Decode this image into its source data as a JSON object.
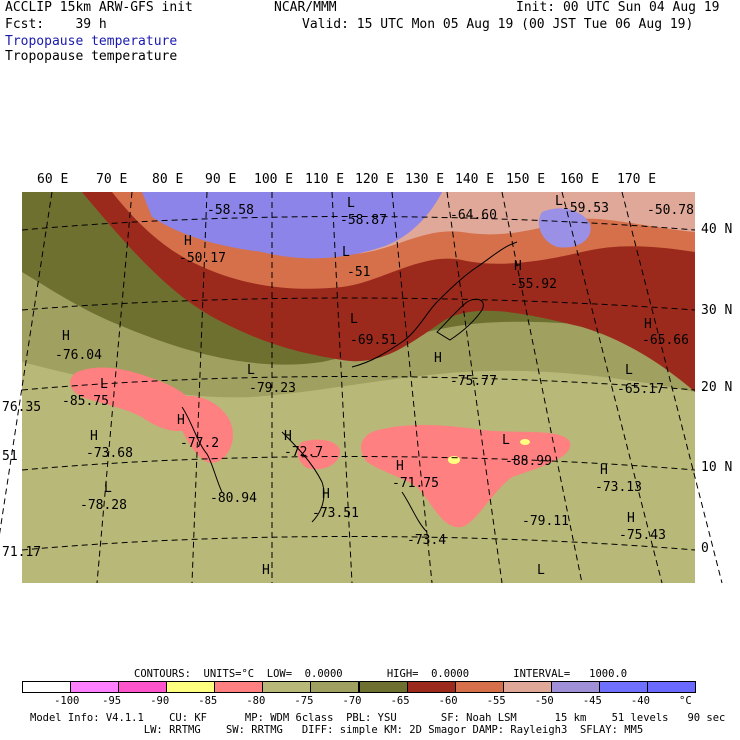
{
  "header": {
    "model_line": "ACCLIP 15km ARW-GFS init",
    "fcst_line": "Fcst:    39 h",
    "center": "NCAR/MMM",
    "init_line": "Init: 00 UTC Sun 04 Aug 19",
    "valid_line": "Valid: 15 UTC Mon 05 Aug 19 (00 JST Tue 06 Aug 19)",
    "field_title_1": "Tropopause temperature",
    "field_title_2": "Tropopause temperature"
  },
  "map": {
    "lon_labels": [
      "60 E",
      "70 E",
      "80 E",
      "90 E",
      "100 E",
      "110 E",
      "120 E",
      "130 E",
      "140 E",
      "150 E",
      "160 E",
      "170 E"
    ],
    "lat_labels": [
      "40 N",
      "30 N",
      "20 N",
      "10 N",
      "0"
    ],
    "extrema": [
      {
        "type": "L",
        "value": "-58.58"
      },
      {
        "type": "L",
        "value": "-58.87"
      },
      {
        "type": "L",
        "value": "-64.60"
      },
      {
        "type": "L",
        "value": "-59.53"
      },
      {
        "type": "L",
        "value": "-50.78"
      },
      {
        "type": "H",
        "value": "-50.17"
      },
      {
        "type": "L",
        "value": "-51"
      },
      {
        "type": "H",
        "value": "-55.92"
      },
      {
        "type": "L",
        "value": "-69.51"
      },
      {
        "type": "H",
        "value": "-65.66"
      },
      {
        "type": "H",
        "value": "-76.04"
      },
      {
        "type": "L",
        "value": "-79.23"
      },
      {
        "type": "H",
        "value": "-75.77"
      },
      {
        "type": "L",
        "value": "-65.17"
      },
      {
        "type": "L",
        "value": "-85.75"
      },
      {
        "type": "",
        "value": "76.35"
      },
      {
        "type": "H",
        "value": "-73.68"
      },
      {
        "type": "H",
        "value": "-77.2"
      },
      {
        "type": "H",
        "value": "-72.7"
      },
      {
        "type": "L",
        "value": "-88.99"
      },
      {
        "type": "",
        "value": "51"
      },
      {
        "type": "H",
        "value": "-71.75"
      },
      {
        "type": "H",
        "value": "-73.13"
      },
      {
        "type": "L",
        "value": "-78.28"
      },
      {
        "type": "",
        "value": "-80.94"
      },
      {
        "type": "H",
        "value": "-73.51"
      },
      {
        "type": "",
        "value": "-79.11"
      },
      {
        "type": "H",
        "value": "-75.43"
      },
      {
        "type": "",
        "value": "-73.4"
      },
      {
        "type": "",
        "value": "71.17"
      }
    ]
  },
  "legend": {
    "contours_line": "CONTOURS:  UNITS=°C  LOW=  0.0000       HIGH=  0.0000       INTERVAL=   1000.0",
    "bins": [
      {
        "color": "#ffffff"
      },
      {
        "color": "#ff80ff"
      },
      {
        "color": "#ff55cc"
      },
      {
        "color": "#ffff80"
      },
      {
        "color": "#ff8080"
      },
      {
        "color": "#b8b878"
      },
      {
        "color": "#a0a060"
      },
      {
        "color": "#6e7030"
      },
      {
        "color": "#9c2a1c"
      },
      {
        "color": "#d6704a"
      },
      {
        "color": "#e0a898"
      },
      {
        "color": "#a090d8"
      },
      {
        "color": "#7070ff"
      },
      {
        "color": "#6a6aff"
      }
    ],
    "labels": [
      "-100",
      "-95",
      "-90",
      "-85",
      "-80",
      "-75",
      "-70",
      "-65",
      "-60",
      "-55",
      "-50",
      "-45",
      "-40",
      "°C"
    ]
  },
  "footer": {
    "line1": "Model Info: V4.1.1    CU: KF      MP: WDM 6class  PBL: YSU       SF: Noah LSM      15 km    51 levels   90 sec",
    "line2": "                  LW: RRTMG    SW: RRTMG   DIFF: simple KM: 2D Smagor DAMP: Rayleigh3  SFLAY: MM5"
  }
}
